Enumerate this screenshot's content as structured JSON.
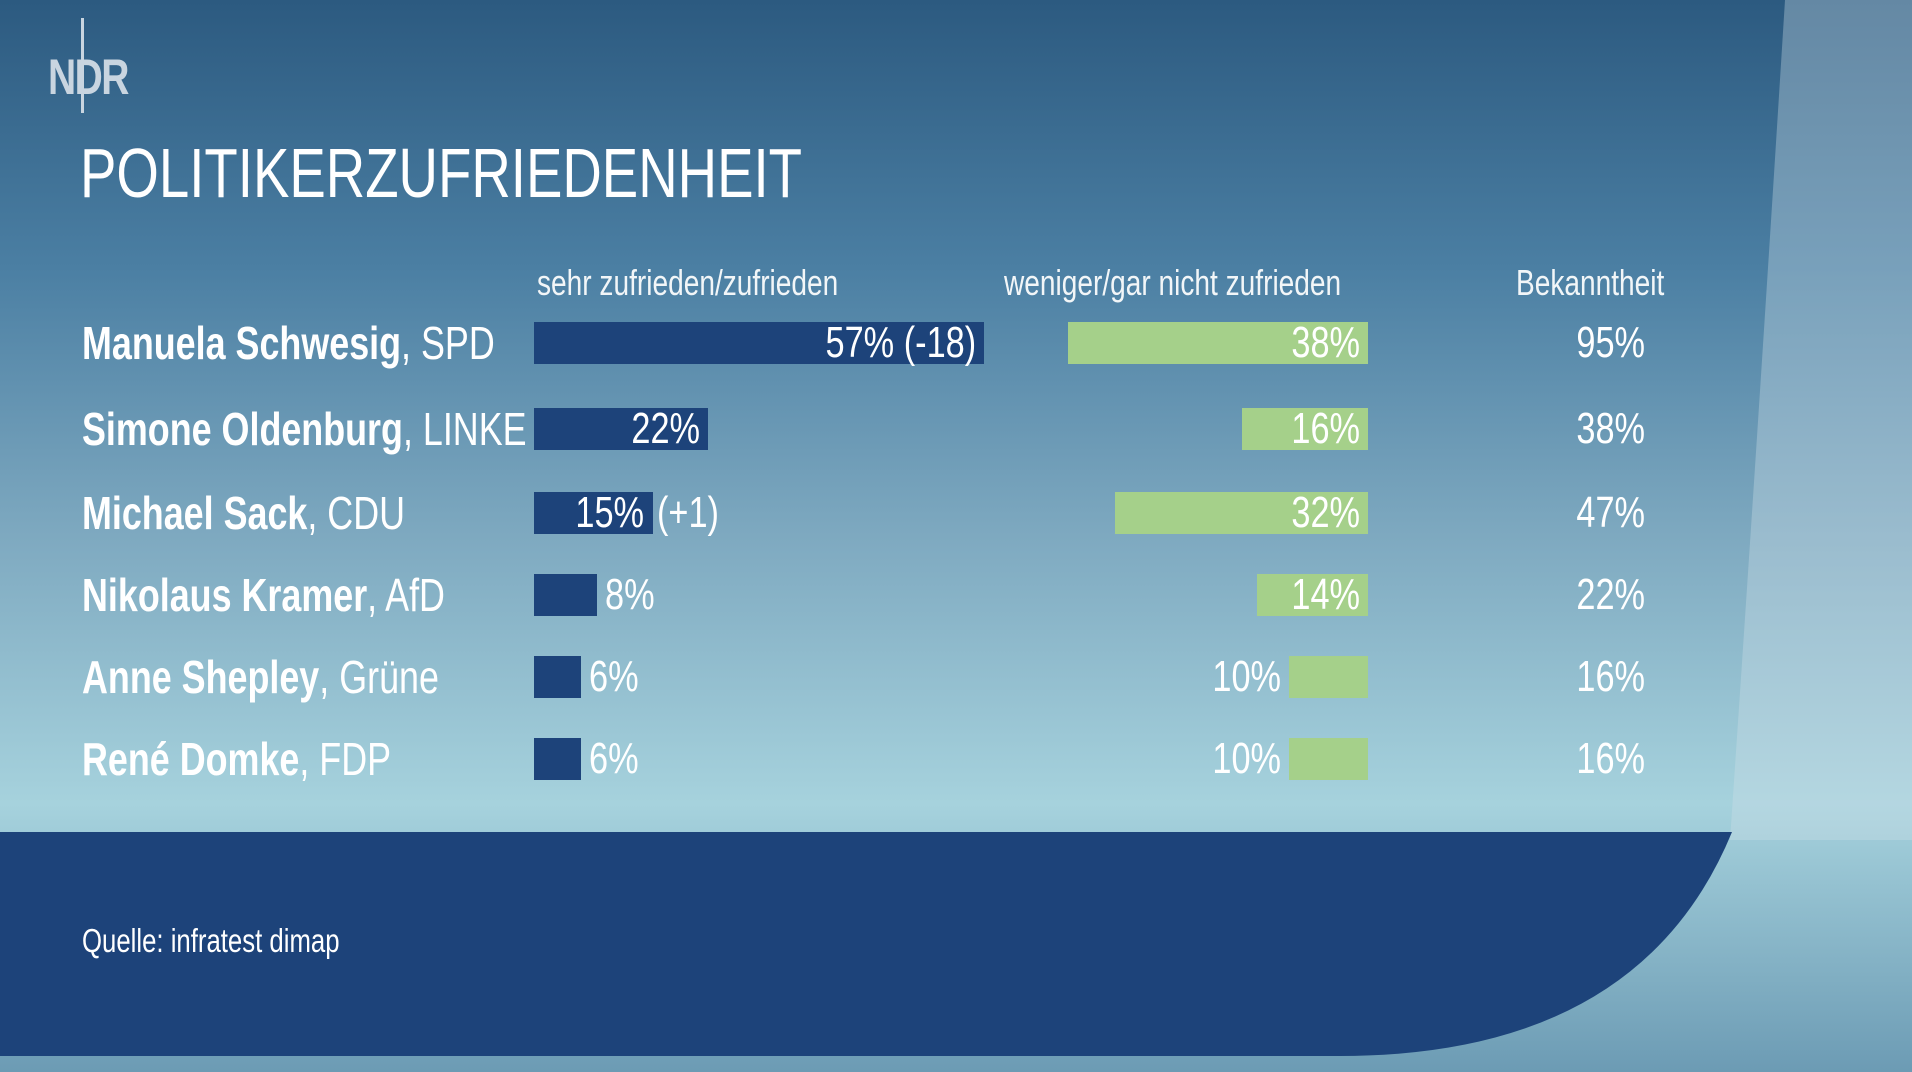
{
  "logo": "NDR",
  "title": "POLITIKERZUFRIEDENHEIT",
  "source": "Quelle: infratest dimap",
  "colors": {
    "satisfied": "#1d437a",
    "dissatisfied": "#a5d08a",
    "footer": "#1d437a"
  },
  "chart_data": {
    "type": "bar",
    "title": "POLITIKERZUFRIEDENHEIT",
    "columns": [
      "sehr zufrieden/zufrieden",
      "weniger/gar nicht zufrieden",
      "Bekanntheit"
    ],
    "rows": [
      {
        "name": "Manuela Schwesig",
        "party": ", SPD",
        "satisfied": 57,
        "satisfied_label": "57% (-18)",
        "dissatisfied": 38,
        "dissatisfied_label": "38%",
        "awareness_label": "95%"
      },
      {
        "name": "Simone Oldenburg",
        "party": ", LINKE",
        "satisfied": 22,
        "satisfied_label": "22%",
        "dissatisfied": 16,
        "dissatisfied_label": "16%",
        "awareness_label": "38%"
      },
      {
        "name": "Michael Sack",
        "party": ", CDU",
        "satisfied": 15,
        "satisfied_label": "15%",
        "satisfied_change": "(+1)",
        "dissatisfied": 32,
        "dissatisfied_label": "32%",
        "awareness_label": "47%"
      },
      {
        "name": "Nikolaus Kramer",
        "party": ", AfD",
        "satisfied": 8,
        "satisfied_label": "8%",
        "dissatisfied": 14,
        "dissatisfied_label": "14%",
        "awareness_label": "22%"
      },
      {
        "name": "Anne Shepley",
        "party": ", Grüne",
        "satisfied": 6,
        "satisfied_label": "6%",
        "dissatisfied": 10,
        "dissatisfied_label": "10%",
        "awareness_label": "16%"
      },
      {
        "name": "René Domke",
        "party": ", FDP",
        "satisfied": 6,
        "satisfied_label": "6%",
        "dissatisfied": 10,
        "dissatisfied_label": "10%",
        "awareness_label": "16%"
      }
    ]
  }
}
